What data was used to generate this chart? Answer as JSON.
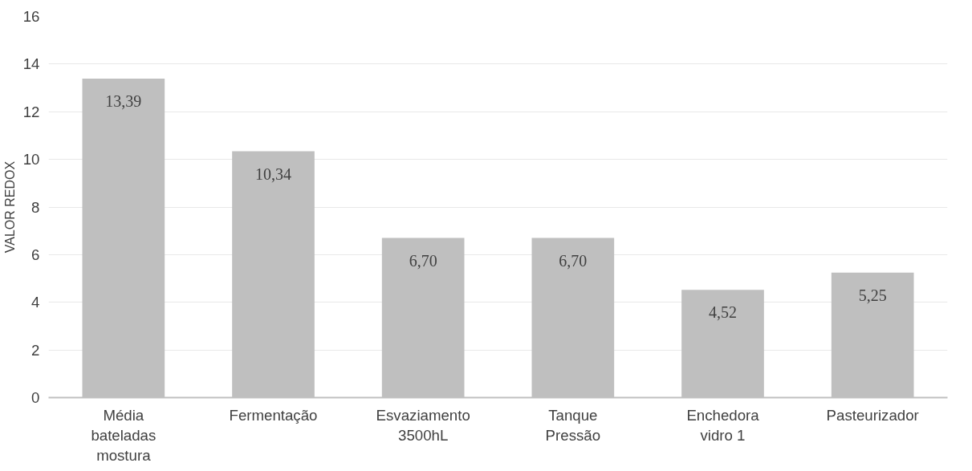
{
  "chart_data": {
    "type": "bar",
    "ylabel": "VALOR REDOX",
    "categories": [
      "Média bateladas mostura",
      "Fermentação",
      "Esvaziamento 3500hL",
      "Tanque Pressão",
      "Enchedora vidro 1",
      "Pasteurizador"
    ],
    "values": [
      13.39,
      10.34,
      6.7,
      6.7,
      4.52,
      5.25
    ],
    "value_labels": [
      "13,39",
      "10,34",
      "6,70",
      "6,70",
      "4,52",
      "5,25"
    ],
    "color": "#bfbfbf",
    "ylim": [
      0,
      16
    ],
    "yticks": [
      0,
      2,
      4,
      6,
      8,
      10,
      12,
      14,
      16
    ],
    "grid": "y"
  }
}
